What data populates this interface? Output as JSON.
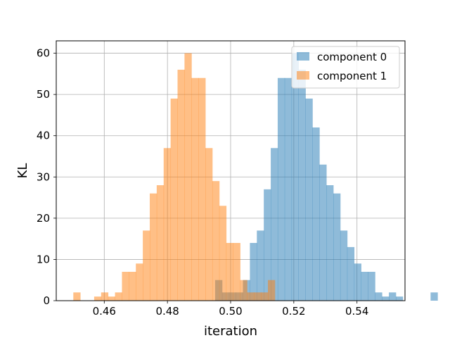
{
  "chart_data": {
    "type": "histogram",
    "title": "",
    "xlabel": "iteration",
    "ylabel": "KL",
    "xlim": [
      0.4448,
      0.5552
    ],
    "ylim": [
      0,
      63
    ],
    "xticks": [
      0.46,
      0.48,
      0.5,
      0.52,
      0.54
    ],
    "xtick_labels": [
      "0.46",
      "0.48",
      "0.50",
      "0.52",
      "0.54"
    ],
    "yticks": [
      0,
      10,
      20,
      30,
      40,
      50,
      60
    ],
    "ytick_labels": [
      "0",
      "10",
      "20",
      "30",
      "40",
      "50",
      "60"
    ],
    "grid": true,
    "legend_position": "top-right",
    "overlay_alpha": 0.5,
    "series": [
      {
        "name": "component 0",
        "color": "#1f77b4",
        "bin_start": 0.4951,
        "bin_width": 0.0022,
        "counts": [
          5,
          2,
          2,
          2,
          5,
          14,
          17,
          27,
          37,
          54,
          54,
          60,
          56,
          49,
          42,
          33,
          28,
          26,
          17,
          13,
          9,
          7,
          7,
          2,
          1,
          2,
          1,
          0,
          0,
          0,
          0,
          2
        ]
      },
      {
        "name": "component 1",
        "color": "#ff7f0e",
        "bin_start": 0.4502,
        "bin_width": 0.0022,
        "counts": [
          2,
          0,
          0,
          1,
          2,
          1,
          2,
          7,
          7,
          9,
          17,
          26,
          28,
          37,
          49,
          56,
          60,
          54,
          54,
          37,
          29,
          23,
          14,
          14,
          5,
          2,
          2,
          2,
          5
        ]
      }
    ]
  }
}
